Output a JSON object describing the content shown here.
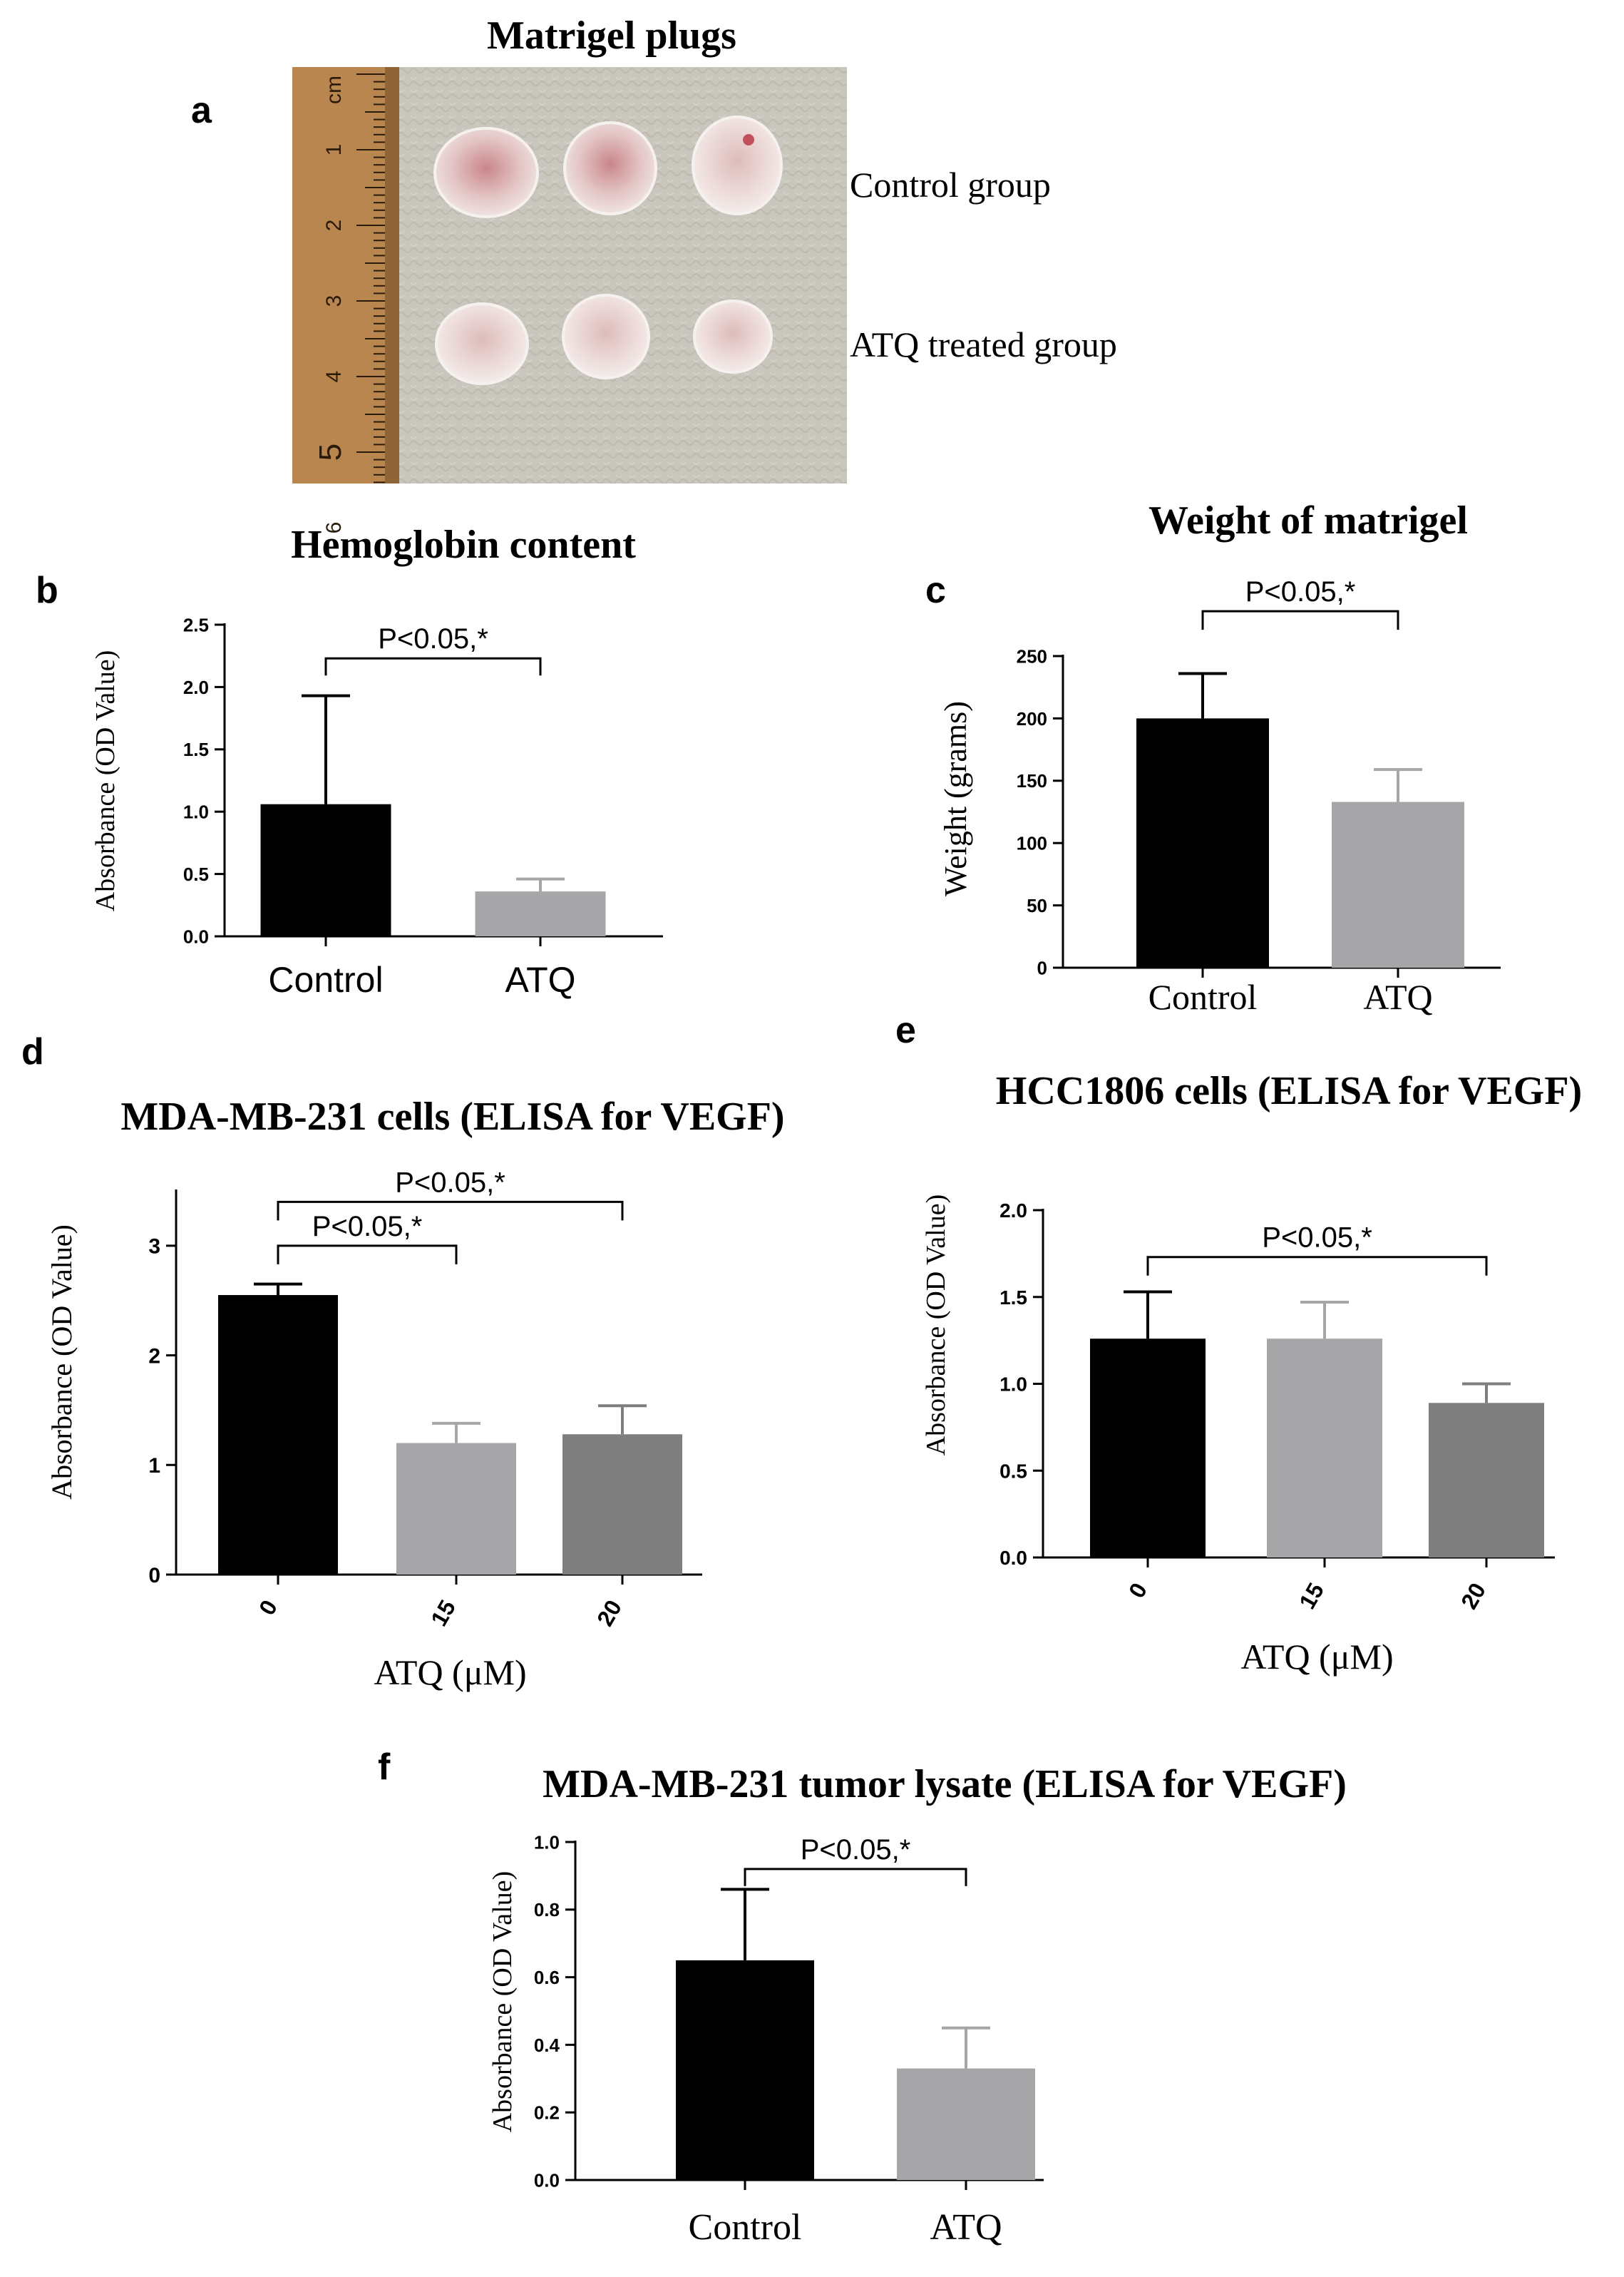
{
  "panel_a": {
    "letter": "a",
    "title": "Matrigel plugs",
    "row_labels": [
      "Control group",
      "ATQ treated group"
    ],
    "ruler_numbers": [
      "cm",
      "1",
      "2",
      "3",
      "4",
      "5",
      "6"
    ]
  },
  "chart_data": [
    {
      "id": "b",
      "letter": "b",
      "type": "bar",
      "title": "Hemoglobin  content",
      "xlabel": "",
      "ylabel": "Absorbance (OD Value)",
      "categories": [
        "Control",
        "ATQ"
      ],
      "values": [
        1.06,
        0.36
      ],
      "errors": [
        0.87,
        0.1
      ],
      "colors": [
        "#000000",
        "#a6a6a9"
      ],
      "ylim": [
        0,
        2.5
      ],
      "yticks": [
        0.0,
        0.5,
        1.0,
        1.5,
        2.0,
        2.5
      ],
      "ytick_labels": [
        "0.0",
        "0.5",
        "1.0",
        "1.5",
        "2.0",
        "2.5"
      ],
      "brackets": [
        {
          "from": 0,
          "to": 1,
          "y": 2.23,
          "label": "P<0.05,*"
        }
      ]
    },
    {
      "id": "c",
      "letter": "c",
      "type": "bar",
      "title": "Weight of matrigel",
      "xlabel": "",
      "ylabel": "Weight (grams)",
      "categories": [
        "Control",
        "ATQ"
      ],
      "values": [
        200,
        133
      ],
      "errors": [
        36,
        26
      ],
      "colors": [
        "#000000",
        "#a6a6a9"
      ],
      "ylim": [
        0,
        250
      ],
      "yticks": [
        0,
        50,
        100,
        150,
        200,
        250
      ],
      "ytick_labels": [
        "0",
        "50",
        "100",
        "150",
        "200",
        "250"
      ],
      "brackets": [
        {
          "from": 0,
          "to": 1,
          "y": 286,
          "label": "P<0.05,*"
        }
      ]
    },
    {
      "id": "d",
      "letter": "d",
      "type": "bar",
      "title": "MDA-MB-231 cells (ELISA for VEGF)",
      "xlabel": "ATQ (μM)",
      "ylabel": "Absorbance (OD Value)",
      "categories": [
        "0",
        "15",
        "20"
      ],
      "values": [
        2.55,
        1.2,
        1.28
      ],
      "errors": [
        0.1,
        0.18,
        0.26
      ],
      "colors": [
        "#000000",
        "#a6a6a9",
        "#7e7e7e"
      ],
      "ylim": [
        0,
        3.5
      ],
      "yticks": [
        0,
        1,
        2,
        3
      ],
      "ytick_labels": [
        "0",
        "1",
        "2",
        "3"
      ],
      "brackets": [
        {
          "from": 0,
          "to": 1,
          "y": 3.0,
          "label": "P<0.05,*"
        },
        {
          "from": 0,
          "to": 2,
          "y": 3.4,
          "label": "P<0.05,*"
        }
      ]
    },
    {
      "id": "e",
      "letter": "e",
      "type": "bar",
      "title": "HCC1806 cells (ELISA for VEGF)",
      "xlabel": "ATQ (μM)",
      "ylabel": "Absorbance (OD Value)",
      "categories": [
        "0",
        "15",
        "20"
      ],
      "values": [
        1.26,
        1.26,
        0.89
      ],
      "errors": [
        0.27,
        0.21,
        0.11
      ],
      "colors": [
        "#000000",
        "#a6a6a9",
        "#7e7e7e"
      ],
      "ylim": [
        0,
        2.0
      ],
      "yticks": [
        0.0,
        0.5,
        1.0,
        1.5,
        2.0
      ],
      "ytick_labels": [
        "0.0",
        "0.5",
        "1.0",
        "1.5",
        "2.0"
      ],
      "brackets": [
        {
          "from": 0,
          "to": 2,
          "y": 1.73,
          "label": "P<0.05,*"
        }
      ]
    },
    {
      "id": "f",
      "letter": "f",
      "type": "bar",
      "title": "MDA-MB-231 tumor lysate (ELISA for VEGF)",
      "xlabel": "",
      "ylabel": "Absorbance (OD Value)",
      "categories": [
        "Control",
        "ATQ"
      ],
      "values": [
        0.65,
        0.33
      ],
      "errors": [
        0.21,
        0.12
      ],
      "colors": [
        "#000000",
        "#a6a6a9"
      ],
      "ylim": [
        0,
        1.0
      ],
      "yticks": [
        0.0,
        0.2,
        0.4,
        0.6,
        0.8,
        1.0
      ],
      "ytick_labels": [
        "0.0",
        "0.2",
        "0.4",
        "0.6",
        "0.8",
        "1.0"
      ],
      "brackets": [
        {
          "from": 0,
          "to": 1,
          "y": 0.92,
          "label": "P<0.05,*"
        }
      ]
    }
  ]
}
